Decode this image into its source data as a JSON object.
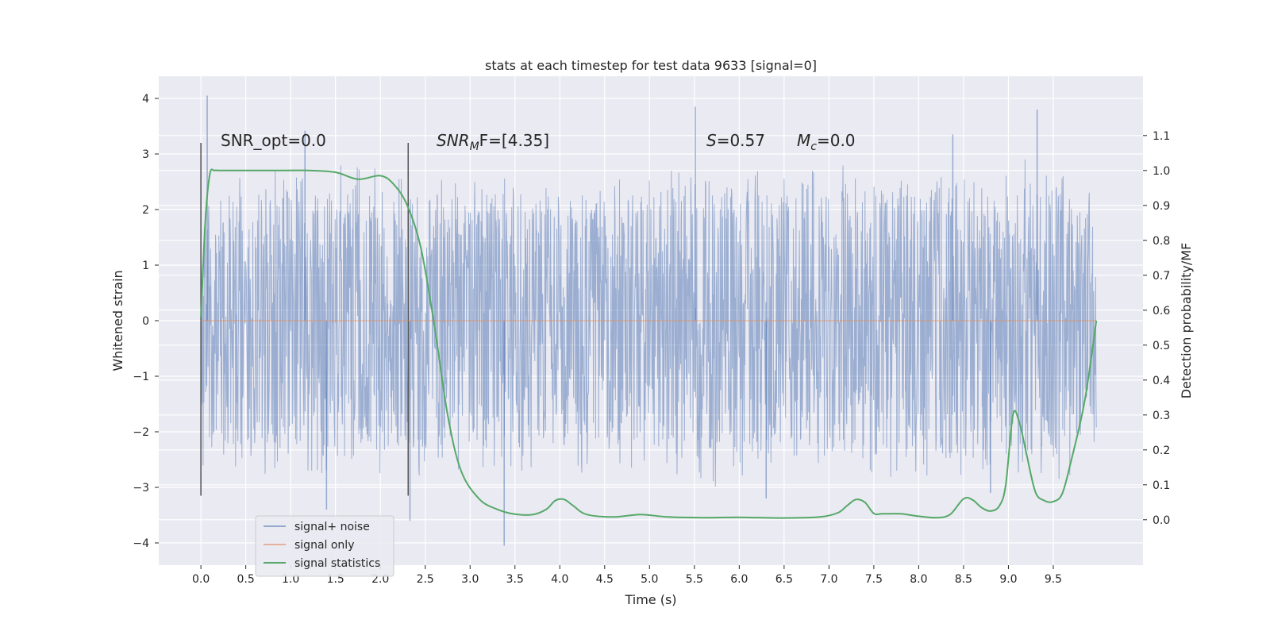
{
  "chart_data": {
    "type": "line",
    "title": "stats at each timestep for test data 9633 [signal=0]",
    "xlabel": "Time (s)",
    "ylabel": "Whitened strain",
    "y2label": "Detection probability/MF",
    "xlim": [
      -0.47,
      10.5
    ],
    "ylim": [
      -4.4,
      4.4
    ],
    "y2lim": [
      -0.13,
      1.27
    ],
    "x_ticks": [
      0.0,
      0.5,
      1.0,
      1.5,
      2.0,
      2.5,
      3.0,
      3.5,
      4.0,
      4.5,
      5.0,
      5.5,
      6.0,
      6.5,
      7.0,
      7.5,
      8.0,
      8.5,
      9.0,
      9.5
    ],
    "x_tick_labels": [
      "0.0",
      "0.5",
      "1.0",
      "1.5",
      "2.0",
      "2.5",
      "3.0",
      "3.5",
      "4.0",
      "4.5",
      "5.0",
      "5.5",
      "6.0",
      "6.5",
      "7.0",
      "7.5",
      "8.0",
      "8.5",
      "9.0",
      "9.5"
    ],
    "y_ticks": [
      -4,
      -3,
      -2,
      -1,
      0,
      1,
      2,
      3,
      4
    ],
    "y_tick_labels": [
      "−4",
      "−3",
      "−2",
      "−1",
      "0",
      "1",
      "2",
      "3",
      "4"
    ],
    "y2_ticks": [
      0.0,
      0.1,
      0.2,
      0.3,
      0.4,
      0.5,
      0.6,
      0.7,
      0.8,
      0.9,
      1.0,
      1.1
    ],
    "y2_tick_labels": [
      "0.0",
      "0.1",
      "0.2",
      "0.3",
      "0.4",
      "0.5",
      "0.6",
      "0.7",
      "0.8",
      "0.9",
      "1.0",
      "1.1"
    ],
    "grid": true,
    "legend_position": "lower-left",
    "noise_range": [
      0.0,
      9.98
    ],
    "noise_envelope": {
      "x": [
        0.0,
        0.5,
        1.0,
        1.5,
        2.0,
        2.5,
        3.0,
        3.5,
        4.0,
        4.5,
        5.0,
        5.5,
        6.0,
        6.5,
        7.0,
        7.5,
        8.0,
        8.5,
        9.0,
        9.5,
        9.98
      ],
      "high": [
        2.6,
        2.6,
        2.9,
        3.0,
        2.9,
        2.7,
        2.5,
        2.6,
        2.5,
        2.7,
        2.6,
        3.2,
        2.8,
        2.6,
        2.9,
        2.8,
        2.7,
        2.9,
        3.0,
        2.9,
        2.2
      ],
      "low": [
        -2.6,
        -2.8,
        -2.7,
        -2.9,
        -2.9,
        -2.8,
        -2.7,
        -2.9,
        -2.8,
        -2.7,
        -2.8,
        -3.0,
        -3.0,
        -2.7,
        -2.8,
        -3.0,
        -3.0,
        -3.1,
        -2.8,
        -3.0,
        -2.5
      ]
    },
    "noise_peaks": [
      {
        "x": 0.07,
        "y": 4.05
      },
      {
        "x": 1.16,
        "y": 3.42
      },
      {
        "x": 2.33,
        "y": -3.6
      },
      {
        "x": 3.38,
        "y": -4.05
      },
      {
        "x": 5.51,
        "y": 3.85
      },
      {
        "x": 8.38,
        "y": 3.35
      },
      {
        "x": 9.32,
        "y": 3.8
      },
      {
        "x": 1.4,
        "y": -3.4
      },
      {
        "x": 6.3,
        "y": -3.2
      },
      {
        "x": 8.8,
        "y": -3.1
      }
    ],
    "vertical_lines": [
      {
        "x": 0.0,
        "y1": -3.15,
        "y2": 3.2
      },
      {
        "x": 2.31,
        "y1": -3.15,
        "y2": 3.2
      }
    ],
    "series": [
      {
        "name": "signal+ noise",
        "color": "#4c72b0",
        "axis": "left",
        "x": [
          0.0,
          0.5,
          1.0,
          1.5,
          2.0,
          2.5,
          3.0,
          3.5,
          4.0,
          4.5,
          5.0,
          5.5,
          6.0,
          6.5,
          7.0,
          7.5,
          8.0,
          8.5,
          9.0,
          9.5,
          9.98
        ],
        "values": [
          0.8,
          -1.4,
          1.9,
          -2.1,
          1.2,
          -0.6,
          2.2,
          -1.8,
          0.4,
          1.6,
          -2.0,
          2.4,
          -1.1,
          0.9,
          -2.2,
          1.7,
          -0.8,
          2.0,
          -1.5,
          1.1,
          0.3
        ]
      },
      {
        "name": "signal only",
        "color": "#dd8452",
        "axis": "left",
        "x": [
          0.0,
          9.98
        ],
        "values": [
          0.0,
          0.0
        ]
      },
      {
        "name": "signal statistics",
        "color": "#55a868",
        "axis": "right",
        "x": [
          0.0,
          0.05,
          0.1,
          0.15,
          0.2,
          0.3,
          0.5,
          0.8,
          1.2,
          1.5,
          1.75,
          2.0,
          2.15,
          2.3,
          2.45,
          2.6,
          2.75,
          2.9,
          3.1,
          3.3,
          3.5,
          3.7,
          3.85,
          3.95,
          4.05,
          4.15,
          4.3,
          4.6,
          4.9,
          5.2,
          5.6,
          6.0,
          6.5,
          6.9,
          7.1,
          7.2,
          7.3,
          7.4,
          7.5,
          7.6,
          7.8,
          8.0,
          8.2,
          8.35,
          8.5,
          8.6,
          8.7,
          8.8,
          8.9,
          8.97,
          9.05,
          9.12,
          9.2,
          9.3,
          9.4,
          9.5,
          9.6,
          9.7,
          9.85,
          9.98
        ],
        "values": [
          0.58,
          0.86,
          0.99,
          1.0,
          1.0,
          1.0,
          1.0,
          1.0,
          1.0,
          0.995,
          0.975,
          0.985,
          0.96,
          0.9,
          0.78,
          0.56,
          0.3,
          0.14,
          0.06,
          0.03,
          0.016,
          0.015,
          0.03,
          0.055,
          0.058,
          0.04,
          0.015,
          0.008,
          0.015,
          0.008,
          0.006,
          0.007,
          0.005,
          0.008,
          0.02,
          0.04,
          0.058,
          0.05,
          0.018,
          0.017,
          0.017,
          0.01,
          0.006,
          0.015,
          0.06,
          0.057,
          0.035,
          0.025,
          0.04,
          0.1,
          0.3,
          0.28,
          0.19,
          0.08,
          0.055,
          0.052,
          0.075,
          0.17,
          0.34,
          0.57
        ]
      }
    ],
    "annotations": {
      "snr_opt": "SNR_opt=0.0",
      "snr_mf": "SNR",
      "snr_mf_sub": "M",
      "snr_mf_rest": "F=[4.35]",
      "s": "S",
      "s_rest": "=0.57",
      "mc": "M",
      "mc_sub": "c",
      "mc_rest": "=0.0"
    }
  },
  "legend": {
    "items": [
      {
        "label": "signal+ noise",
        "color": "#4c72b0"
      },
      {
        "label": "signal only",
        "color": "#dd8452"
      },
      {
        "label": "signal statistics",
        "color": "#55a868"
      }
    ]
  },
  "colors": {
    "plot_background": "#eaeaf2",
    "grid": "#ffffff",
    "noise_fill": "#97aad0",
    "vline": "#555555"
  }
}
